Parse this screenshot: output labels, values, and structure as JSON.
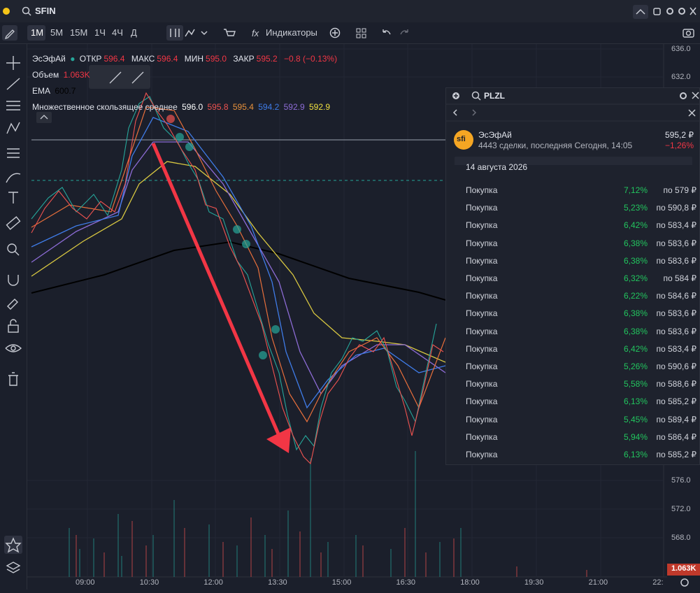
{
  "topbar": {
    "ticker": "SFIN"
  },
  "toolbar": {
    "intervals": [
      "1M",
      "5M",
      "15M",
      "1Ч",
      "4Ч",
      "Д"
    ],
    "indicators": "Индикаторы"
  },
  "legend": {
    "name": "ЭсЭфАй",
    "open_label": "ОТКР",
    "open": "596.4",
    "high_label": "МАКС",
    "high": "596.4",
    "low_label": "МИН",
    "low": "595.0",
    "close_label": "ЗАКР",
    "close": "595.2",
    "change": "−0.8 (−0.13%)",
    "volume_label": "Объем",
    "volume": "1.063K",
    "ema_label": "EMA",
    "ema": "600.7",
    "mma_label": "Множественное скользящее среднее",
    "mma": [
      "596.0",
      "595.8",
      "595.4",
      "594.2",
      "592.9",
      "592.9"
    ]
  },
  "price_axis": {
    "top": [
      "636.0",
      "632.0"
    ],
    "bottom": [
      "576.0",
      "572.0",
      "568.0"
    ],
    "volume": "1.063K"
  },
  "time_axis": [
    "09:00",
    "10:30",
    "12:00",
    "13:30",
    "15:00",
    "16:30",
    "18:00",
    "19:30",
    "21:00",
    "22:"
  ],
  "panel": {
    "search": "PLZL",
    "name": "ЭсЭфАй",
    "logo": "sfi",
    "info": "4443 сделки, последняя Сегодня, 14:05",
    "price": "595,2 ₽",
    "change": "−1,26%",
    "date": "14 августа 2026",
    "rows": [
      [
        "Покупка",
        "7,12%",
        "по 579 ₽"
      ],
      [
        "Покупка",
        "5,23%",
        "по 590,8 ₽"
      ],
      [
        "Покупка",
        "6,42%",
        "по 583,4 ₽"
      ],
      [
        "Покупка",
        "6,38%",
        "по 583,6 ₽"
      ],
      [
        "Покупка",
        "6,38%",
        "по 583,6 ₽"
      ],
      [
        "Покупка",
        "6,32%",
        "по 584 ₽"
      ],
      [
        "Покупка",
        "6,22%",
        "по 584,6 ₽"
      ],
      [
        "Покупка",
        "6,38%",
        "по 583,6 ₽"
      ],
      [
        "Покупка",
        "6,38%",
        "по 583,6 ₽"
      ],
      [
        "Покупка",
        "6,42%",
        "по 583,4 ₽"
      ],
      [
        "Покупка",
        "5,26%",
        "по 590,6 ₽"
      ],
      [
        "Покупка",
        "5,58%",
        "по 588,6 ₽"
      ],
      [
        "Покупка",
        "6,13%",
        "по 585,2 ₽"
      ],
      [
        "Покупка",
        "5,45%",
        "по 589,4 ₽"
      ],
      [
        "Покупка",
        "5,94%",
        "по 586,4 ₽"
      ],
      [
        "Покупка",
        "6,13%",
        "по 585,2 ₽"
      ]
    ]
  }
}
